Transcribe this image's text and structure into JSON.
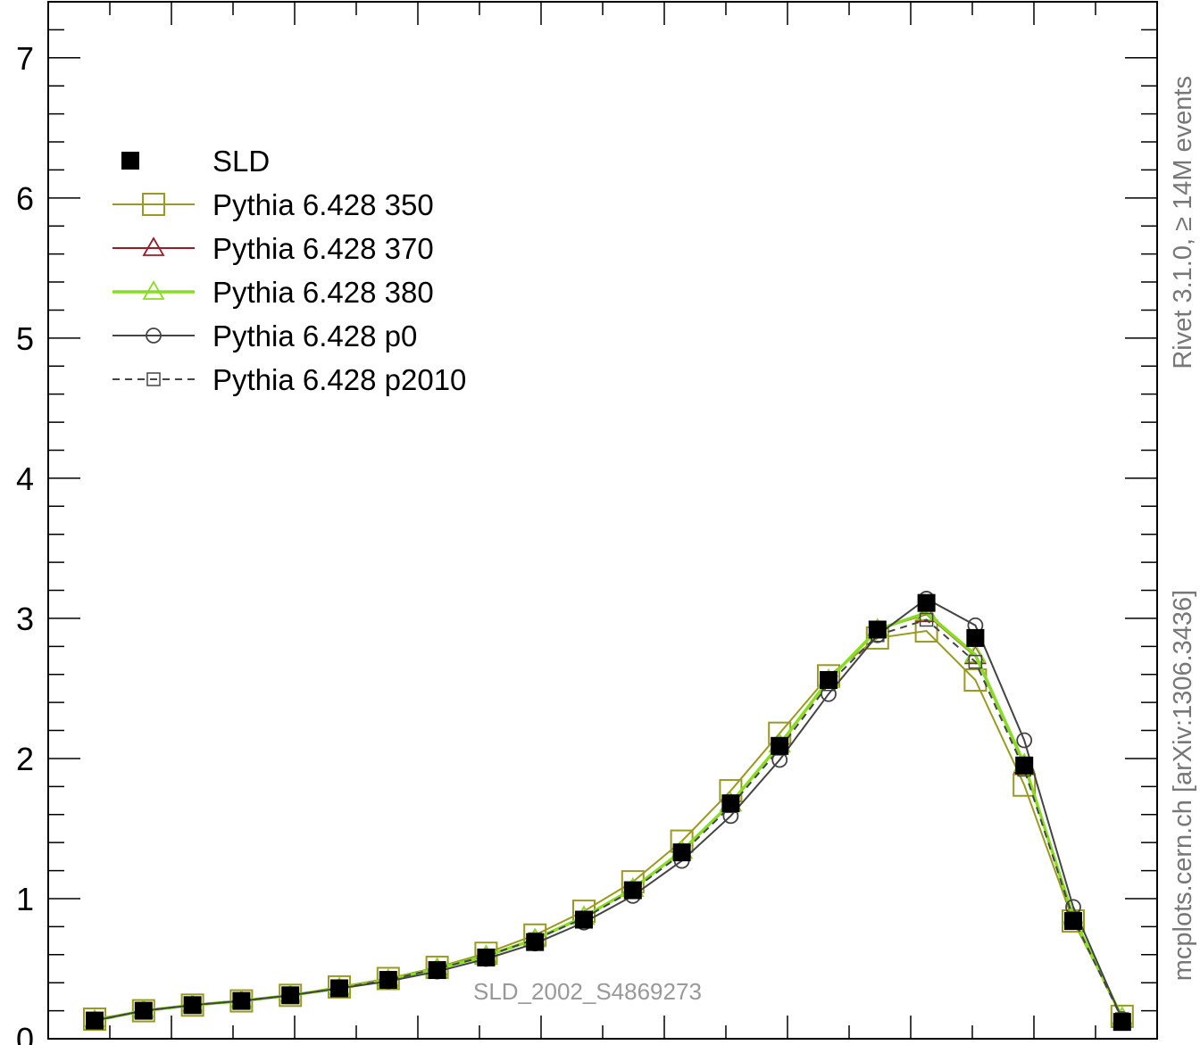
{
  "chart_data": {
    "type": "line",
    "title": "",
    "xlabel": "",
    "ylabel": "",
    "ylim": [
      0,
      7.4
    ],
    "yticks": [
      "0",
      "1",
      "2",
      "3",
      "4",
      "5",
      "6",
      "7"
    ],
    "legend_position": "top-left",
    "x": [
      1,
      2,
      3,
      4,
      5,
      6,
      7,
      8,
      9,
      10,
      11,
      12,
      13,
      14,
      15,
      16,
      17,
      18,
      19,
      20,
      21,
      22
    ],
    "series": [
      {
        "name": "SLD",
        "color": "#000000",
        "style": "points",
        "marker": "filled-square",
        "values": [
          0.13,
          0.2,
          0.24,
          0.27,
          0.31,
          0.36,
          0.42,
          0.49,
          0.58,
          0.69,
          0.85,
          1.06,
          1.33,
          1.68,
          2.09,
          2.56,
          2.92,
          3.11,
          2.86,
          1.95,
          0.84,
          0.12
        ]
      },
      {
        "name": "Pythia 6.428 350",
        "color": "#9a9a22",
        "style": "solid",
        "marker": "open-square",
        "values": [
          0.14,
          0.2,
          0.24,
          0.27,
          0.31,
          0.37,
          0.43,
          0.51,
          0.61,
          0.74,
          0.91,
          1.12,
          1.41,
          1.77,
          2.18,
          2.59,
          2.86,
          2.91,
          2.56,
          1.81,
          0.84,
          0.16
        ]
      },
      {
        "name": "Pythia 6.428 370",
        "color": "#9a1b2a",
        "style": "solid",
        "marker": "open-triangle",
        "values": [
          0.13,
          0.2,
          0.24,
          0.27,
          0.31,
          0.36,
          0.42,
          0.5,
          0.59,
          0.71,
          0.87,
          1.07,
          1.34,
          1.68,
          2.1,
          2.56,
          2.92,
          3.03,
          2.73,
          1.95,
          0.87,
          0.15
        ]
      },
      {
        "name": "Pythia 6.428 380",
        "color": "#88dd22",
        "style": "solid-thick",
        "marker": "open-triangle",
        "values": [
          0.13,
          0.2,
          0.24,
          0.27,
          0.31,
          0.36,
          0.42,
          0.5,
          0.59,
          0.71,
          0.87,
          1.07,
          1.34,
          1.68,
          2.1,
          2.56,
          2.92,
          3.04,
          2.74,
          1.96,
          0.87,
          0.15
        ]
      },
      {
        "name": "Pythia 6.428 p0",
        "color": "#444444",
        "style": "solid",
        "marker": "open-circle",
        "values": [
          0.13,
          0.2,
          0.24,
          0.27,
          0.31,
          0.36,
          0.41,
          0.48,
          0.57,
          0.68,
          0.83,
          1.02,
          1.27,
          1.59,
          1.99,
          2.46,
          2.88,
          3.14,
          2.95,
          2.13,
          0.94,
          0.14
        ]
      },
      {
        "name": "Pythia 6.428 p2010",
        "color": "#444444",
        "style": "dashed",
        "marker": "open-square-small",
        "values": [
          0.13,
          0.2,
          0.24,
          0.27,
          0.31,
          0.36,
          0.42,
          0.5,
          0.59,
          0.71,
          0.86,
          1.06,
          1.32,
          1.66,
          2.07,
          2.53,
          2.88,
          2.99,
          2.69,
          1.92,
          0.86,
          0.14
        ]
      }
    ]
  },
  "annotations": {
    "watermark": "SLD_2002_S4869273",
    "side_top": "Rivet 3.1.0, ≥ 14M events",
    "side_bottom": "mcplots.cern.ch [arXiv:1306.3436]"
  }
}
